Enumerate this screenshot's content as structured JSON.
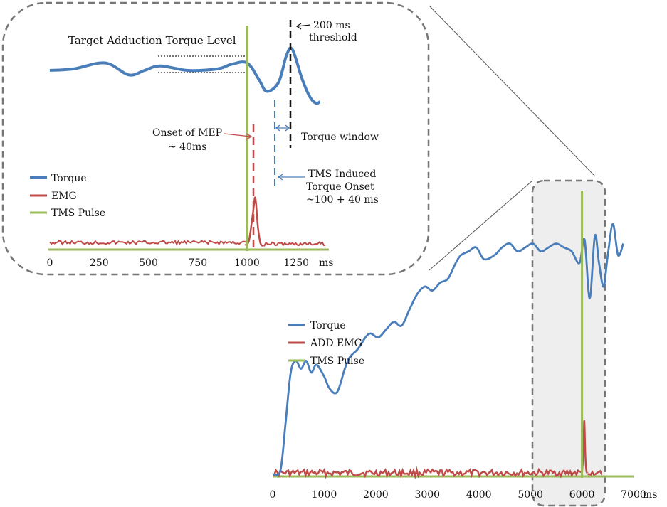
{
  "chart_data": [
    {
      "type": "line",
      "title": "",
      "xlabel": "",
      "ylabel": "",
      "x_unit": "ms",
      "xlim": [
        0,
        7000
      ],
      "xticks": [
        "0",
        "1000",
        "2000",
        "3000",
        "4000",
        "5000",
        "6000",
        "7000"
      ],
      "legend": [
        "Torque",
        "ADD EMG",
        "TMS Pulse"
      ],
      "series": [
        {
          "name": "Torque",
          "color": "#4a7ebb",
          "x": [
            0,
            150,
            250,
            350,
            450,
            550,
            650,
            750,
            850,
            1000,
            1100,
            1250,
            1400,
            1500,
            1650,
            1800,
            1900,
            2050,
            2200,
            2350,
            2500,
            2650,
            2800,
            2950,
            3100,
            3250,
            3400,
            3550,
            3650,
            3800,
            3950,
            4100,
            4300,
            4450,
            4600,
            4750,
            4900,
            5050,
            5200,
            5350,
            5500,
            5650,
            5800,
            5950,
            6050,
            6150,
            6250,
            6330,
            6420,
            6500,
            6600,
            6700,
            6800
          ],
          "y": [
            0,
            10,
            130,
            260,
            290,
            270,
            290,
            260,
            280,
            250,
            220,
            210,
            270,
            300,
            320,
            350,
            360,
            350,
            370,
            390,
            380,
            420,
            460,
            480,
            470,
            490,
            500,
            540,
            560,
            570,
            580,
            550,
            560,
            580,
            590,
            570,
            580,
            590,
            570,
            580,
            590,
            580,
            570,
            540,
            600,
            450,
            610,
            540,
            480,
            560,
            640,
            560,
            590
          ]
        },
        {
          "name": "ADD EMG",
          "color": "#be4b48",
          "x": [
            0,
            6000,
            6020,
            6040,
            6060,
            6080,
            6100,
            6400
          ],
          "y": [
            8,
            8,
            30,
            100,
            40,
            10,
            8,
            8
          ]
        },
        {
          "name": "TMS Pulse",
          "color": "#9bbb59",
          "x": [
            6000
          ],
          "y": [
            640
          ]
        }
      ],
      "highlight_window": [
        5000,
        6400
      ]
    },
    {
      "type": "line",
      "title": "Target Adduction Torque Level",
      "xlabel": "",
      "ylabel": "",
      "x_unit": "ms",
      "xlim": [
        0,
        1400
      ],
      "xticks": [
        "0",
        "250",
        "500",
        "750",
        "1000",
        "1250"
      ],
      "legend": [
        "Torque",
        "EMG",
        "TMS Pulse"
      ],
      "series": [
        {
          "name": "Torque",
          "color": "#4a7ebb",
          "x": [
            0,
            120,
            280,
            400,
            480,
            560,
            700,
            850,
            920,
            1000,
            1060,
            1100,
            1160,
            1200,
            1230,
            1280,
            1320,
            1350,
            1370
          ],
          "y": [
            0,
            1,
            5,
            -3,
            0,
            3,
            0,
            1,
            4,
            5,
            -6,
            -14,
            -8,
            10,
            14,
            -6,
            -18,
            -22,
            -21
          ]
        },
        {
          "name": "EMG",
          "color": "#be4b48",
          "x": [
            0,
            1000,
            1015,
            1030,
            1045,
            1060,
            1400
          ],
          "y": [
            0,
            0,
            10,
            55,
            15,
            0,
            0
          ]
        },
        {
          "name": "TMS Pulse",
          "color": "#9bbb59",
          "x": [
            1000
          ],
          "y": [
            100
          ]
        }
      ],
      "annotations": [
        {
          "label": "200 ms",
          "label2": "threshold"
        },
        {
          "label": "Onset of MEP",
          "label2": "~ 40ms"
        },
        {
          "label": "Torque window"
        },
        {
          "label": "TMS Induced",
          "label2": "Torque  Onset",
          "label3": "~100 + 40 ms"
        }
      ]
    }
  ]
}
